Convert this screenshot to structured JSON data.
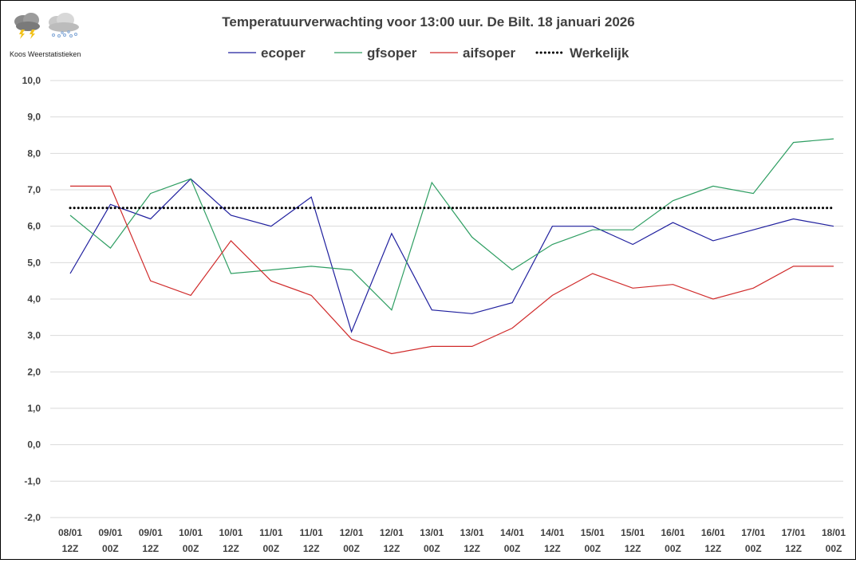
{
  "logo": {
    "text": "Koos Weerstatistieken",
    "icons": [
      "thunderstorm-cloud-icon",
      "snow-cloud-icon"
    ]
  },
  "chart_data": {
    "type": "line",
    "title": "Temperatuurverwachting voor 13:00 uur. De Bilt. 18 januari 2026",
    "xlabel": "",
    "ylabel": "",
    "categories": [
      [
        "08/01",
        "12Z"
      ],
      [
        "09/01",
        "00Z"
      ],
      [
        "09/01",
        "12Z"
      ],
      [
        "10/01",
        "00Z"
      ],
      [
        "10/01",
        "12Z"
      ],
      [
        "11/01",
        "00Z"
      ],
      [
        "11/01",
        "12Z"
      ],
      [
        "12/01",
        "00Z"
      ],
      [
        "12/01",
        "12Z"
      ],
      [
        "13/01",
        "00Z"
      ],
      [
        "13/01",
        "12Z"
      ],
      [
        "14/01",
        "00Z"
      ],
      [
        "14/01",
        "12Z"
      ],
      [
        "15/01",
        "00Z"
      ],
      [
        "15/01",
        "12Z"
      ],
      [
        "16/01",
        "00Z"
      ],
      [
        "16/01",
        "12Z"
      ],
      [
        "17/01",
        "00Z"
      ],
      [
        "17/01",
        "12Z"
      ],
      [
        "18/01",
        "00Z"
      ]
    ],
    "ylim": [
      -2,
      10
    ],
    "yticks": [
      "-2,0",
      "-1,0",
      "0,0",
      "1,0",
      "2,0",
      "3,0",
      "4,0",
      "5,0",
      "6,0",
      "7,0",
      "8,0",
      "9,0",
      "10,0"
    ],
    "grid": true,
    "legend_position": "top",
    "series": [
      {
        "name": "ecoper",
        "color": "#1f1f9e",
        "style": "solid",
        "values": [
          4.7,
          6.6,
          6.2,
          7.3,
          6.3,
          6.0,
          6.8,
          3.1,
          5.8,
          3.7,
          3.6,
          3.9,
          6.0,
          6.0,
          5.5,
          6.1,
          5.6,
          5.9,
          6.2,
          6.0
        ]
      },
      {
        "name": "gfsoper",
        "color": "#2e9e62",
        "style": "solid",
        "values": [
          6.3,
          5.4,
          6.9,
          7.3,
          4.7,
          4.8,
          4.9,
          4.8,
          3.7,
          7.2,
          5.7,
          4.8,
          5.5,
          5.9,
          5.9,
          6.7,
          7.1,
          6.9,
          8.3,
          8.4
        ]
      },
      {
        "name": "aifsoper",
        "color": "#d02a2a",
        "style": "solid",
        "values": [
          7.1,
          7.1,
          4.5,
          4.1,
          5.6,
          4.5,
          4.1,
          2.9,
          2.5,
          2.7,
          2.7,
          3.2,
          4.1,
          4.7,
          4.3,
          4.4,
          4.0,
          4.3,
          4.9,
          4.9
        ]
      },
      {
        "name": "Werkelijk",
        "color": "#000000",
        "style": "dotted",
        "values": [
          6.5,
          6.5,
          6.5,
          6.5,
          6.5,
          6.5,
          6.5,
          6.5,
          6.5,
          6.5,
          6.5,
          6.5,
          6.5,
          6.5,
          6.5,
          6.5,
          6.5,
          6.5,
          6.5,
          6.5
        ]
      }
    ]
  }
}
